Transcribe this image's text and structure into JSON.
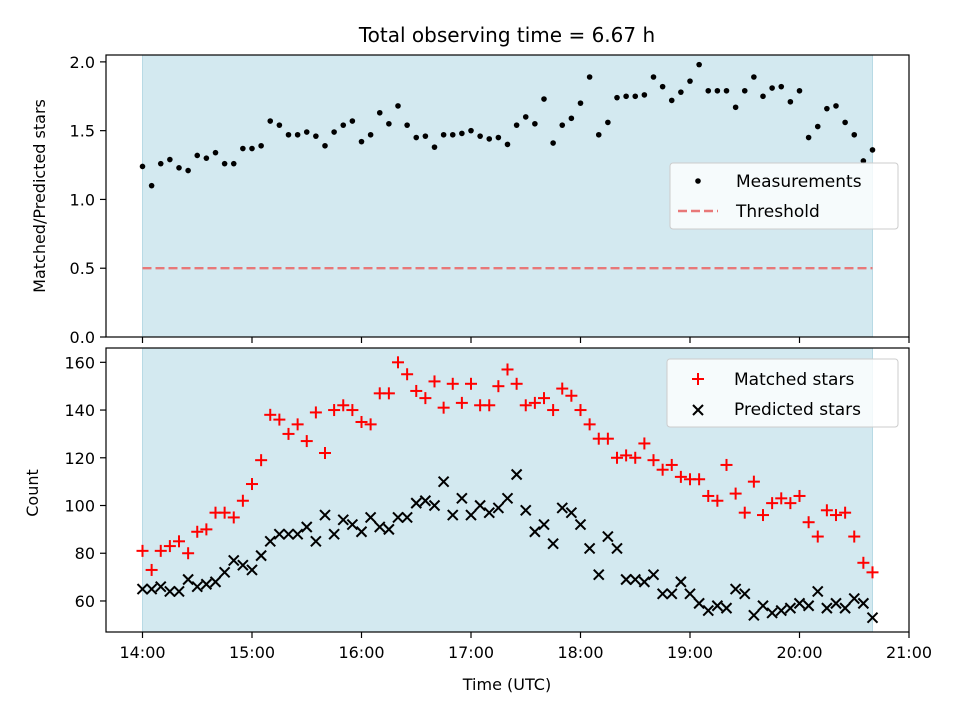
{
  "chart_data": [
    {
      "type": "scatter",
      "title": "Total observing time = 6.67 h",
      "xlabel": "",
      "ylabel": "Matched/Predicted stars",
      "xlim": [
        "13:40",
        "21:00"
      ],
      "ylim": [
        0,
        2.05
      ],
      "yticks": [
        "0.0",
        "0.5",
        "1.0",
        "1.5",
        "2.0"
      ],
      "observing_window": [
        "14:00",
        "20:40"
      ],
      "shading_color": "#d3e9f0",
      "legend": {
        "position": "center-right",
        "entries": [
          "Measurements",
          "Threshold"
        ]
      },
      "threshold": {
        "name": "Threshold",
        "value": 0.5,
        "color": "#e87878",
        "style": "dashed"
      },
      "series": [
        {
          "name": "Measurements",
          "color": "#000000",
          "marker": "dot",
          "x": [
            "14:00",
            "14:05",
            "14:10",
            "14:15",
            "14:20",
            "14:25",
            "14:30",
            "14:35",
            "14:40",
            "14:45",
            "14:50",
            "14:55",
            "15:00",
            "15:05",
            "15:10",
            "15:15",
            "15:20",
            "15:25",
            "15:30",
            "15:35",
            "15:40",
            "15:45",
            "15:50",
            "15:55",
            "16:00",
            "16:05",
            "16:10",
            "16:15",
            "16:20",
            "16:25",
            "16:30",
            "16:35",
            "16:40",
            "16:45",
            "16:50",
            "16:55",
            "17:00",
            "17:05",
            "17:10",
            "17:15",
            "17:20",
            "17:25",
            "17:30",
            "17:35",
            "17:40",
            "17:45",
            "17:50",
            "17:55",
            "18:00",
            "18:05",
            "18:10",
            "18:15",
            "18:20",
            "18:25",
            "18:30",
            "18:35",
            "18:40",
            "18:45",
            "18:50",
            "18:55",
            "19:00",
            "19:05",
            "19:10",
            "19:15",
            "19:20",
            "19:25",
            "19:30",
            "19:35",
            "19:40",
            "19:45",
            "19:50",
            "19:55",
            "20:00",
            "20:05",
            "20:10",
            "20:15",
            "20:20",
            "20:25",
            "20:30",
            "20:35",
            "20:40"
          ],
          "y": [
            1.24,
            1.1,
            1.26,
            1.29,
            1.23,
            1.21,
            1.32,
            1.3,
            1.34,
            1.26,
            1.26,
            1.37,
            1.37,
            1.39,
            1.57,
            1.54,
            1.47,
            1.47,
            1.49,
            1.46,
            1.39,
            1.49,
            1.54,
            1.57,
            1.42,
            1.47,
            1.63,
            1.55,
            1.68,
            1.54,
            1.45,
            1.46,
            1.38,
            1.47,
            1.47,
            1.48,
            1.5,
            1.46,
            1.44,
            1.45,
            1.4,
            1.54,
            1.6,
            1.55,
            1.73,
            1.41,
            1.54,
            1.59,
            1.7,
            1.89,
            1.47,
            1.56,
            1.74,
            1.75,
            1.75,
            1.76,
            1.89,
            1.82,
            1.72,
            1.78,
            1.86,
            1.98,
            1.79,
            1.79,
            1.79,
            1.67,
            1.79,
            1.89,
            1.75,
            1.81,
            1.82,
            1.71,
            1.79,
            1.45,
            1.53,
            1.66,
            1.68,
            1.56,
            1.47,
            1.28,
            1.36
          ]
        }
      ]
    },
    {
      "type": "scatter",
      "title": "",
      "xlabel": "Time (UTC)",
      "ylabel": "Count",
      "xlim": [
        "13:40",
        "21:00"
      ],
      "ylim": [
        47,
        166
      ],
      "xticks": [
        "14:00",
        "15:00",
        "16:00",
        "17:00",
        "18:00",
        "19:00",
        "20:00",
        "21:00"
      ],
      "yticks": [
        "60",
        "80",
        "100",
        "120",
        "140",
        "160"
      ],
      "observing_window": [
        "14:00",
        "20:40"
      ],
      "shading_color": "#d3e9f0",
      "legend": {
        "position": "top-right",
        "entries": [
          "Matched stars",
          "Predicted stars"
        ]
      },
      "series": [
        {
          "name": "Matched stars",
          "color": "#ff0000",
          "marker": "plus",
          "x": [
            "14:00",
            "14:05",
            "14:10",
            "14:15",
            "14:20",
            "14:25",
            "14:30",
            "14:35",
            "14:40",
            "14:45",
            "14:50",
            "14:55",
            "15:00",
            "15:05",
            "15:10",
            "15:15",
            "15:20",
            "15:25",
            "15:30",
            "15:35",
            "15:40",
            "15:45",
            "15:50",
            "15:55",
            "16:00",
            "16:05",
            "16:10",
            "16:15",
            "16:20",
            "16:25",
            "16:30",
            "16:35",
            "16:40",
            "16:45",
            "16:50",
            "16:55",
            "17:00",
            "17:05",
            "17:10",
            "17:15",
            "17:20",
            "17:25",
            "17:30",
            "17:35",
            "17:40",
            "17:45",
            "17:50",
            "17:55",
            "18:00",
            "18:05",
            "18:10",
            "18:15",
            "18:20",
            "18:25",
            "18:30",
            "18:35",
            "18:40",
            "18:45",
            "18:50",
            "18:55",
            "19:00",
            "19:05",
            "19:10",
            "19:15",
            "19:20",
            "19:25",
            "19:30",
            "19:35",
            "19:40",
            "19:45",
            "19:50",
            "19:55",
            "20:00",
            "20:05",
            "20:10",
            "20:15",
            "20:20",
            "20:25",
            "20:30",
            "20:35",
            "20:40"
          ],
          "y": [
            81,
            73,
            81,
            83,
            85,
            80,
            89,
            90,
            97,
            97,
            95,
            102,
            109,
            119,
            138,
            136,
            130,
            134,
            127,
            139,
            122,
            140,
            142,
            140,
            135,
            134,
            147,
            147,
            160,
            155,
            148,
            145,
            152,
            141,
            151,
            143,
            151,
            142,
            142,
            150,
            157,
            151,
            142,
            143,
            145,
            140,
            149,
            146,
            140,
            134,
            128,
            128,
            120,
            121,
            120,
            126,
            119,
            115,
            117,
            112,
            111,
            111,
            104,
            102,
            117,
            105,
            97,
            110,
            96,
            101,
            103,
            101,
            104,
            93,
            87,
            98,
            96,
            97,
            87,
            76,
            72
          ]
        },
        {
          "name": "Predicted stars",
          "color": "#000000",
          "marker": "x",
          "x": [
            "14:00",
            "14:05",
            "14:10",
            "14:15",
            "14:20",
            "14:25",
            "14:30",
            "14:35",
            "14:40",
            "14:45",
            "14:50",
            "14:55",
            "15:00",
            "15:05",
            "15:10",
            "15:15",
            "15:20",
            "15:25",
            "15:30",
            "15:35",
            "15:40",
            "15:45",
            "15:50",
            "15:55",
            "16:00",
            "16:05",
            "16:10",
            "16:15",
            "16:20",
            "16:25",
            "16:30",
            "16:35",
            "16:40",
            "16:45",
            "16:50",
            "16:55",
            "17:00",
            "17:05",
            "17:10",
            "17:15",
            "17:20",
            "17:25",
            "17:30",
            "17:35",
            "17:40",
            "17:45",
            "17:50",
            "17:55",
            "18:00",
            "18:05",
            "18:10",
            "18:15",
            "18:20",
            "18:25",
            "18:30",
            "18:35",
            "18:40",
            "18:45",
            "18:50",
            "18:55",
            "19:00",
            "19:05",
            "19:10",
            "19:15",
            "19:20",
            "19:25",
            "19:30",
            "19:35",
            "19:40",
            "19:45",
            "19:50",
            "19:55",
            "20:00",
            "20:05",
            "20:10",
            "20:15",
            "20:20",
            "20:25",
            "20:30",
            "20:35",
            "20:40"
          ],
          "y": [
            65,
            65,
            66,
            64,
            64,
            69,
            66,
            67,
            68,
            72,
            77,
            75,
            73,
            79,
            85,
            88,
            88,
            88,
            91,
            85,
            96,
            88,
            94,
            92,
            89,
            95,
            91,
            90,
            95,
            95,
            101,
            102,
            100,
            110,
            96,
            103,
            96,
            100,
            97,
            99,
            103,
            113,
            98,
            89,
            92,
            84,
            99,
            97,
            92,
            82,
            71,
            87,
            82,
            69,
            69,
            68,
            71,
            63,
            63,
            68,
            63,
            59,
            56,
            58,
            57,
            65,
            63,
            54,
            58,
            55,
            56,
            57,
            59,
            58,
            64,
            57,
            59,
            57,
            61,
            59,
            53
          ]
        }
      ]
    }
  ]
}
